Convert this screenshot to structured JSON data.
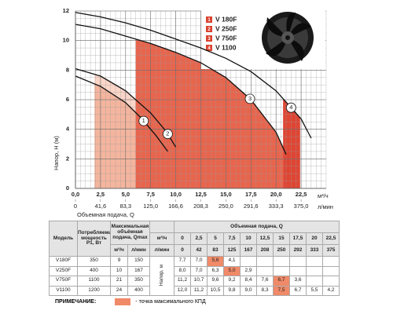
{
  "chart_data": {
    "type": "line",
    "y_label": "Напор, Н (м)",
    "x_label": "Объемная подача, Q",
    "x_unit": "м³/ч",
    "x2_unit": "л/мин",
    "xlim": [
      0,
      25
    ],
    "ylim": [
      0,
      12
    ],
    "x2lim": [
      0,
      416.7
    ],
    "xticks": [
      {
        "value": 0,
        "label": "0,0"
      },
      {
        "value": 2.5,
        "label": "2,5"
      },
      {
        "value": 5,
        "label": "5,0"
      },
      {
        "value": 7.5,
        "label": "7,5"
      },
      {
        "value": 10,
        "label": "10,0"
      },
      {
        "value": 12.5,
        "label": "12,5"
      },
      {
        "value": 15,
        "label": "15,0"
      },
      {
        "value": 17.5,
        "label": "17,5"
      },
      {
        "value": 20,
        "label": "20,0"
      },
      {
        "value": 22.5,
        "label": "22,5"
      }
    ],
    "x2ticks": [
      0,
      {
        "value": 41.6,
        "label": "41,6"
      },
      {
        "value": 83.3,
        "label": "83,3"
      },
      {
        "value": 125,
        "label": "125,0"
      },
      {
        "value": 166.6,
        "label": "166,6"
      },
      {
        "value": 208.3,
        "label": "208,3"
      },
      {
        "value": 250,
        "label": "250,0"
      },
      {
        "value": 291.6,
        "label": "291,6"
      },
      {
        "value": 333.3,
        "label": "333,3"
      },
      {
        "value": 375,
        "label": "375,0"
      }
    ],
    "yticks": [
      0,
      2,
      4,
      6,
      8,
      10,
      12
    ],
    "minor_step": 0.5,
    "grid": true,
    "line_color": "#111111",
    "legend_color": "#d9432f",
    "series": [
      {
        "name": "V 250F",
        "marker": "2",
        "color": "#fbd6c8",
        "band": [
          1.9,
          6.0
        ],
        "label_x": 9.2,
        "x": [
          0,
          2.5,
          5,
          7.5,
          9,
          10
        ],
        "values": [
          8.1,
          7.6,
          6.6,
          5.1,
          3.9,
          2.8
        ]
      },
      {
        "name": "V 180F",
        "marker": "1",
        "color": "#f4b59e",
        "band": [
          1.9,
          6.0
        ],
        "label_x": 6.8,
        "x": [
          0,
          2.5,
          5,
          6.5,
          8,
          9.2
        ],
        "values": [
          7.6,
          6.9,
          5.8,
          4.8,
          3.6,
          2.5
        ]
      },
      {
        "name": "V 750F",
        "marker": "3",
        "color": "#e8654d",
        "band": [
          6.0,
          20.7
        ],
        "label_x": 17.4,
        "x": [
          0,
          2.5,
          5,
          7.5,
          10,
          12.5,
          15,
          17.5,
          20,
          21
        ],
        "values": [
          11.1,
          10.8,
          10.3,
          9.8,
          9.2,
          8.5,
          7.5,
          6.0,
          3.8,
          2.3
        ]
      },
      {
        "name": "V 1100",
        "marker": "4",
        "color": "#df4533",
        "band": [
          20.7,
          22.4
        ],
        "label_x": 21.5,
        "x": [
          0,
          2.5,
          5,
          7.5,
          10,
          12.5,
          15,
          17.5,
          20,
          22.5,
          23.5
        ],
        "values": [
          11.9,
          11.6,
          11.2,
          10.7,
          10.1,
          9.5,
          8.8,
          7.9,
          6.6,
          4.7,
          3.4
        ]
      }
    ]
  },
  "table": {
    "headers": {
      "model": "Модель",
      "power": "Потребляемая мощность Р1, Вт",
      "qmax": "Максимальная объёмная подача, Qmax",
      "unit_m3": "м³/ч",
      "unit_lmin": "л/мин",
      "head": "Напор, м",
      "flow": "Объемная подача, Q"
    },
    "flow_m3": [
      "0",
      "2,5",
      "5",
      "7,5",
      "10",
      "12,5",
      "15",
      "17,5",
      "20",
      "22,5"
    ],
    "flow_lmin": [
      "0",
      "42",
      "83",
      "125",
      "167",
      "208",
      "250",
      "292",
      "333",
      "375"
    ],
    "highlight_color": "#f08a68",
    "rows": [
      {
        "model": "V180F",
        "power": "350",
        "qmax_m3": "9",
        "qmax_lmin": "150",
        "head": [
          "7,7",
          "7,0",
          "5,6",
          "4,1"
        ],
        "best": 2
      },
      {
        "model": "V250F",
        "power": "400",
        "qmax_m3": "10",
        "qmax_lmin": "167",
        "head": [
          "8,0",
          "7,0",
          "6,3",
          "5,0",
          "2,9"
        ],
        "best": 3
      },
      {
        "model": "V750F",
        "power": "1100",
        "qmax_m3": "21",
        "qmax_lmin": "350",
        "head": [
          "11,2",
          "10,7",
          "9,6",
          "9,2",
          "8,4",
          "7,6",
          "6,7",
          "3,6"
        ],
        "best": 6
      },
      {
        "model": "V1100",
        "power": "1200",
        "qmax_m3": "24",
        "qmax_lmin": "400",
        "head": [
          "12,0",
          "11,2",
          "10,5",
          "9,8",
          "9,0",
          "8,3",
          "7,5",
          "6,7",
          "5,5",
          "4,2"
        ],
        "best": 6
      }
    ]
  },
  "note": {
    "label": "ПРИМЕЧАНИЕ:",
    "text": "- точка максимального КПД"
  }
}
